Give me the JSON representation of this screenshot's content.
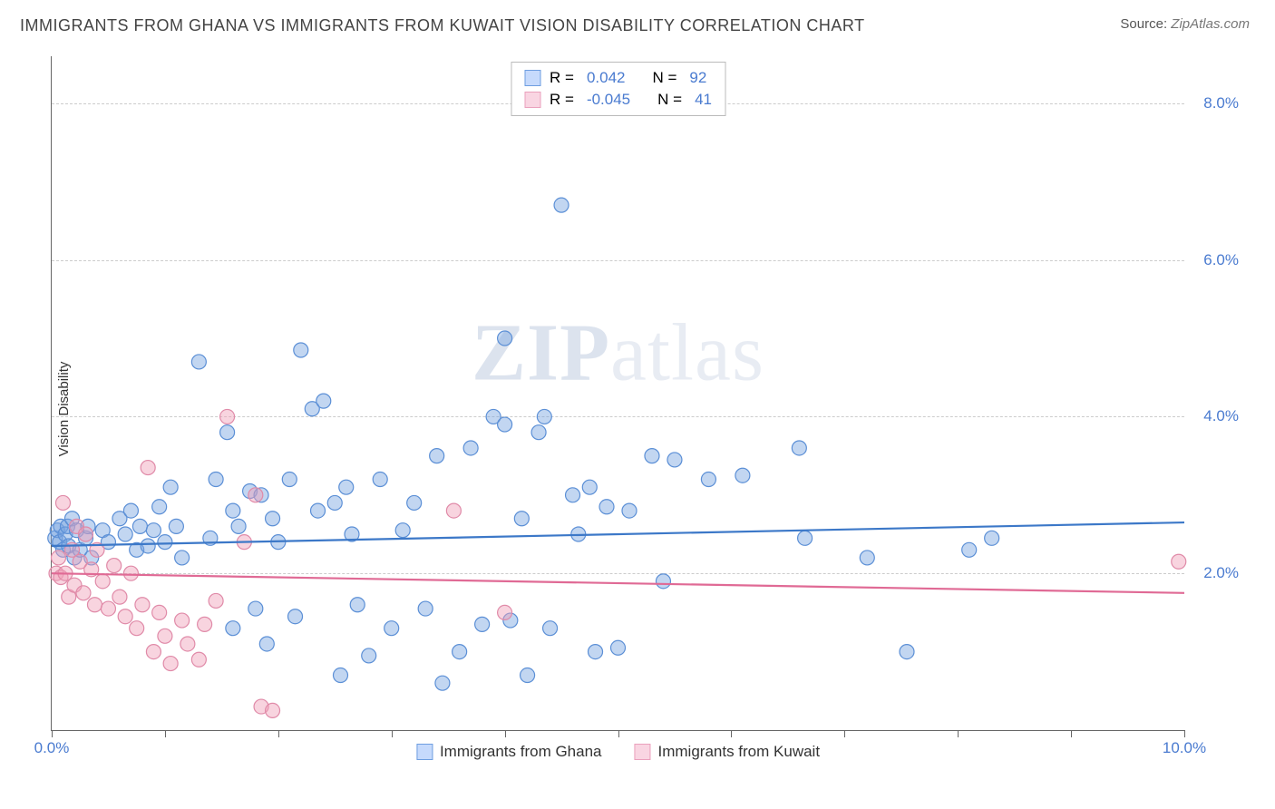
{
  "title": "IMMIGRANTS FROM GHANA VS IMMIGRANTS FROM KUWAIT VISION DISABILITY CORRELATION CHART",
  "source_label": "Source:",
  "source_name": "ZipAtlas.com",
  "ylabel": "Vision Disability",
  "watermark_a": "ZIP",
  "watermark_b": "atlas",
  "chart": {
    "type": "scatter-with-regression",
    "xlim": [
      0,
      10
    ],
    "ylim": [
      0,
      8.6
    ],
    "yticks": [
      2.0,
      4.0,
      6.0,
      8.0
    ],
    "ytick_labels": [
      "2.0%",
      "4.0%",
      "6.0%",
      "8.0%"
    ],
    "ytick_color": "#4a7bd0",
    "xtick_positions": [
      0,
      1,
      2,
      3,
      4,
      5,
      6,
      7,
      8,
      9,
      10
    ],
    "xtick_label_left": "0.0%",
    "xtick_label_right": "10.0%",
    "xtick_label_color": "#4a7bd0",
    "grid_color": "#cccccc",
    "axis_color": "#666666",
    "background_color": "#ffffff",
    "marker_radius": 8,
    "series": [
      {
        "name": "Immigrants from Ghana",
        "color_fill": "rgba(120,165,225,0.45)",
        "color_stroke": "#5b8fd6",
        "line_color": "#3c78c8",
        "swatch_fill": "#c6dafc",
        "swatch_border": "#6e9ee0",
        "R": "0.042",
        "N": "92",
        "regression": {
          "y_at_x0": 2.35,
          "y_at_xmax": 2.65
        },
        "points": [
          [
            0.03,
            2.45
          ],
          [
            0.05,
            2.55
          ],
          [
            0.07,
            2.4
          ],
          [
            0.08,
            2.6
          ],
          [
            0.1,
            2.3
          ],
          [
            0.12,
            2.5
          ],
          [
            0.14,
            2.6
          ],
          [
            0.15,
            2.35
          ],
          [
            0.18,
            2.7
          ],
          [
            0.2,
            2.2
          ],
          [
            0.22,
            2.55
          ],
          [
            0.25,
            2.3
          ],
          [
            0.3,
            2.45
          ],
          [
            0.32,
            2.6
          ],
          [
            0.35,
            2.2
          ],
          [
            0.45,
            2.55
          ],
          [
            0.5,
            2.4
          ],
          [
            0.6,
            2.7
          ],
          [
            0.65,
            2.5
          ],
          [
            0.7,
            2.8
          ],
          [
            0.75,
            2.3
          ],
          [
            0.78,
            2.6
          ],
          [
            0.85,
            2.35
          ],
          [
            0.9,
            2.55
          ],
          [
            0.95,
            2.85
          ],
          [
            1.0,
            2.4
          ],
          [
            1.05,
            3.1
          ],
          [
            1.1,
            2.6
          ],
          [
            1.15,
            2.2
          ],
          [
            1.3,
            4.7
          ],
          [
            1.4,
            2.45
          ],
          [
            1.45,
            3.2
          ],
          [
            1.55,
            3.8
          ],
          [
            1.6,
            2.8
          ],
          [
            1.6,
            1.3
          ],
          [
            1.65,
            2.6
          ],
          [
            1.75,
            3.05
          ],
          [
            1.8,
            1.55
          ],
          [
            1.85,
            3.0
          ],
          [
            1.9,
            1.1
          ],
          [
            1.95,
            2.7
          ],
          [
            2.0,
            2.4
          ],
          [
            2.1,
            3.2
          ],
          [
            2.15,
            1.45
          ],
          [
            2.2,
            4.85
          ],
          [
            2.3,
            4.1
          ],
          [
            2.35,
            2.8
          ],
          [
            2.4,
            4.2
          ],
          [
            2.5,
            2.9
          ],
          [
            2.55,
            0.7
          ],
          [
            2.6,
            3.1
          ],
          [
            2.65,
            2.5
          ],
          [
            2.7,
            1.6
          ],
          [
            2.8,
            0.95
          ],
          [
            2.9,
            3.2
          ],
          [
            3.0,
            1.3
          ],
          [
            3.1,
            2.55
          ],
          [
            3.2,
            2.9
          ],
          [
            3.3,
            1.55
          ],
          [
            3.4,
            3.5
          ],
          [
            3.45,
            0.6
          ],
          [
            3.6,
            1.0
          ],
          [
            3.7,
            3.6
          ],
          [
            3.8,
            1.35
          ],
          [
            3.9,
            4.0
          ],
          [
            4.0,
            5.0
          ],
          [
            4.0,
            3.9
          ],
          [
            4.05,
            1.4
          ],
          [
            4.15,
            2.7
          ],
          [
            4.2,
            0.7
          ],
          [
            4.3,
            3.8
          ],
          [
            4.35,
            4.0
          ],
          [
            4.4,
            1.3
          ],
          [
            4.5,
            6.7
          ],
          [
            4.6,
            3.0
          ],
          [
            4.65,
            2.5
          ],
          [
            4.75,
            3.1
          ],
          [
            4.8,
            1.0
          ],
          [
            4.9,
            2.85
          ],
          [
            5.0,
            1.05
          ],
          [
            5.1,
            2.8
          ],
          [
            5.3,
            3.5
          ],
          [
            5.4,
            1.9
          ],
          [
            5.5,
            3.45
          ],
          [
            5.8,
            3.2
          ],
          [
            6.1,
            3.25
          ],
          [
            6.6,
            3.6
          ],
          [
            6.65,
            2.45
          ],
          [
            7.2,
            2.2
          ],
          [
            7.55,
            1.0
          ],
          [
            8.1,
            2.3
          ],
          [
            8.3,
            2.45
          ]
        ]
      },
      {
        "name": "Immigrants from Kuwait",
        "color_fill": "rgba(240,160,185,0.45)",
        "color_stroke": "#e08aa8",
        "line_color": "#e06a95",
        "swatch_fill": "#f9d5e2",
        "swatch_border": "#eaa0bc",
        "R": "-0.045",
        "N": "41",
        "regression": {
          "y_at_x0": 2.0,
          "y_at_xmax": 1.75
        },
        "points": [
          [
            0.04,
            2.0
          ],
          [
            0.06,
            2.2
          ],
          [
            0.08,
            1.95
          ],
          [
            0.1,
            2.9
          ],
          [
            0.12,
            2.0
          ],
          [
            0.15,
            1.7
          ],
          [
            0.18,
            2.3
          ],
          [
            0.2,
            1.85
          ],
          [
            0.22,
            2.6
          ],
          [
            0.25,
            2.15
          ],
          [
            0.28,
            1.75
          ],
          [
            0.3,
            2.5
          ],
          [
            0.35,
            2.05
          ],
          [
            0.38,
            1.6
          ],
          [
            0.4,
            2.3
          ],
          [
            0.45,
            1.9
          ],
          [
            0.5,
            1.55
          ],
          [
            0.55,
            2.1
          ],
          [
            0.6,
            1.7
          ],
          [
            0.65,
            1.45
          ],
          [
            0.7,
            2.0
          ],
          [
            0.75,
            1.3
          ],
          [
            0.8,
            1.6
          ],
          [
            0.85,
            3.35
          ],
          [
            0.9,
            1.0
          ],
          [
            0.95,
            1.5
          ],
          [
            1.0,
            1.2
          ],
          [
            1.05,
            0.85
          ],
          [
            1.15,
            1.4
          ],
          [
            1.2,
            1.1
          ],
          [
            1.3,
            0.9
          ],
          [
            1.35,
            1.35
          ],
          [
            1.55,
            4.0
          ],
          [
            1.7,
            2.4
          ],
          [
            1.8,
            3.0
          ],
          [
            1.85,
            0.3
          ],
          [
            1.95,
            0.25
          ],
          [
            3.55,
            2.8
          ],
          [
            4.0,
            1.5
          ],
          [
            9.95,
            2.15
          ],
          [
            1.45,
            1.65
          ]
        ]
      }
    ],
    "stats_label_R": "R =",
    "stats_label_N": "N =",
    "stats_value_color": "#4a7bd0",
    "stats_key_color": "#333333"
  }
}
